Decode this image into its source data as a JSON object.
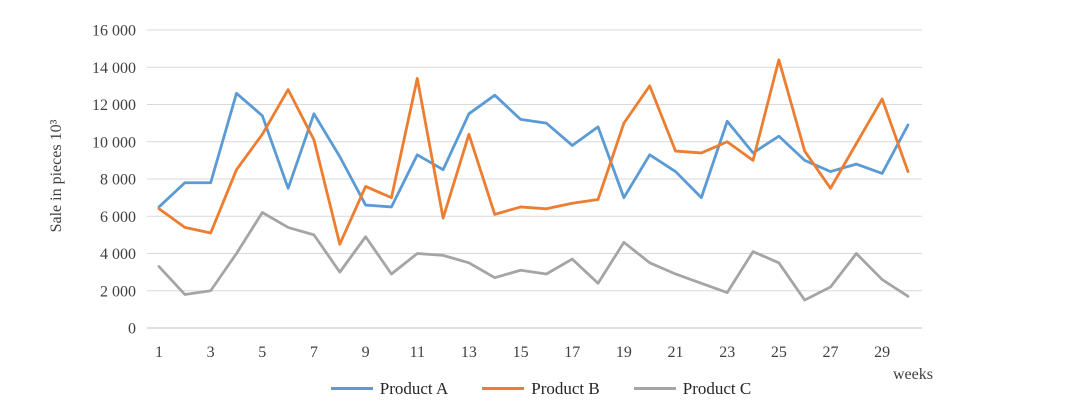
{
  "chart_data": {
    "type": "line",
    "title": "",
    "xlabel": "weeks",
    "ylabel": "Sale in pieces 10³",
    "x": [
      1,
      2,
      3,
      4,
      5,
      6,
      7,
      8,
      9,
      10,
      11,
      12,
      13,
      14,
      15,
      16,
      17,
      18,
      19,
      20,
      21,
      22,
      23,
      24,
      25,
      26,
      27,
      28,
      29,
      30
    ],
    "series": [
      {
        "name": "Product A",
        "color": "#5B9BD5",
        "values": [
          6500,
          7800,
          7800,
          12600,
          11400,
          7500,
          11500,
          9200,
          6600,
          6500,
          9300,
          8500,
          11500,
          12500,
          11200,
          11000,
          9800,
          10800,
          7000,
          9300,
          8400,
          7000,
          11100,
          9400,
          10300,
          9000,
          8400,
          8800,
          8300,
          10900
        ]
      },
      {
        "name": "Product B",
        "color": "#ED7D31",
        "values": [
          6400,
          5400,
          5100,
          8500,
          10400,
          12800,
          10100,
          4500,
          7600,
          7000,
          13400,
          5900,
          10400,
          6100,
          6500,
          6400,
          6700,
          6900,
          11000,
          13000,
          9500,
          9400,
          10000,
          9000,
          14400,
          9500,
          7500,
          9900,
          12300,
          8400
        ]
      },
      {
        "name": "Product C",
        "color": "#A5A5A5",
        "values": [
          3300,
          1800,
          2000,
          4000,
          6200,
          5400,
          5000,
          3000,
          4900,
          2900,
          4000,
          3900,
          3500,
          2700,
          3100,
          2900,
          3700,
          2400,
          4600,
          3500,
          2900,
          2400,
          1900,
          4100,
          3500,
          1500,
          2200,
          4000,
          2600,
          1700
        ]
      }
    ],
    "ylim": [
      0,
      16000
    ],
    "ytick_step": 2000,
    "ytick_labels": [
      "0",
      "2 000",
      "4 000",
      "6 000",
      "8 000",
      "10 000",
      "12 000",
      "14 000",
      "16 000"
    ],
    "xtick_labels": [
      "1",
      "3",
      "5",
      "7",
      "9",
      "11",
      "13",
      "15",
      "17",
      "19",
      "21",
      "23",
      "25",
      "27",
      "29"
    ],
    "grid": "horizontal",
    "legend_position": "bottom",
    "colors": {
      "gridline": "#D9D9D9",
      "axis_line": "#BFBFBF",
      "tick_text": "#404040"
    }
  }
}
